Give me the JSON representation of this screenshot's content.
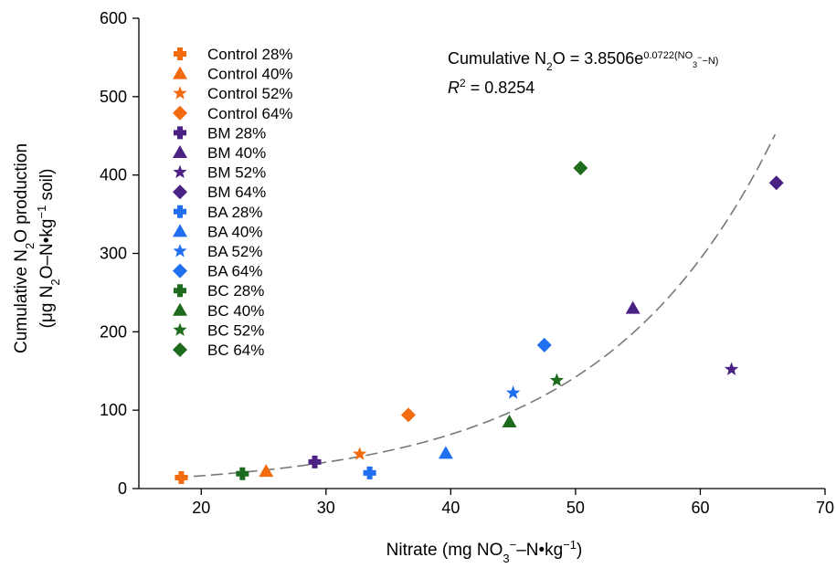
{
  "chart_data": {
    "type": "scatter",
    "xlabel": "Nitrate (mg NO3−–N•kg−1)",
    "ylabel_line1": "Cumulative N2O production",
    "ylabel_line2": "(μg N2O–N•kg−1 soil)",
    "xlim": [
      15,
      70
    ],
    "ylim": [
      0,
      600
    ],
    "xticks": [
      20,
      30,
      40,
      50,
      60,
      70
    ],
    "yticks": [
      0,
      100,
      200,
      300,
      400,
      500,
      600
    ],
    "grid": false,
    "legend_position": "top-left",
    "equation": "Cumulative N2O = 3.8506e^0.0722(NO3−–N)",
    "r2": "R2 = 0.8254",
    "fit": {
      "type": "exponential",
      "a": 3.8506,
      "b": 0.0722,
      "x_range": [
        18,
        66
      ]
    },
    "series": [
      {
        "name": "Control 28%",
        "color": "#F26B0F",
        "marker": "plus",
        "x": [
          18.4
        ],
        "y": [
          14
        ]
      },
      {
        "name": "Control 40%",
        "color": "#F26B0F",
        "marker": "triangle",
        "x": [
          25.2
        ],
        "y": [
          22
        ]
      },
      {
        "name": "Control 52%",
        "color": "#F26B0F",
        "marker": "star",
        "x": [
          32.7
        ],
        "y": [
          44
        ]
      },
      {
        "name": "Control 64%",
        "color": "#F26B0F",
        "marker": "diamond",
        "x": [
          36.6
        ],
        "y": [
          94
        ]
      },
      {
        "name": "BM 28%",
        "color": "#4B2283",
        "marker": "plus",
        "x": [
          29.1
        ],
        "y": [
          34
        ]
      },
      {
        "name": "BM 40%",
        "color": "#4B2283",
        "marker": "triangle",
        "x": [
          54.6
        ],
        "y": [
          230
        ]
      },
      {
        "name": "BM 52%",
        "color": "#4B2283",
        "marker": "star",
        "x": [
          62.5
        ],
        "y": [
          152
        ]
      },
      {
        "name": "BM 64%",
        "color": "#4B2283",
        "marker": "diamond",
        "x": [
          66.1
        ],
        "y": [
          390
        ]
      },
      {
        "name": "BA 28%",
        "color": "#1F6FF0",
        "marker": "plus",
        "x": [
          33.5
        ],
        "y": [
          20
        ]
      },
      {
        "name": "BA 40%",
        "color": "#1F6FF0",
        "marker": "triangle",
        "x": [
          39.6
        ],
        "y": [
          45
        ]
      },
      {
        "name": "BA 52%",
        "color": "#1F6FF0",
        "marker": "star",
        "x": [
          45.0
        ],
        "y": [
          122
        ]
      },
      {
        "name": "BA 64%",
        "color": "#1F6FF0",
        "marker": "diamond",
        "x": [
          47.5
        ],
        "y": [
          183
        ]
      },
      {
        "name": "BC 28%",
        "color": "#1D6B1D",
        "marker": "plus",
        "x": [
          23.3
        ],
        "y": [
          19
        ]
      },
      {
        "name": "BC 40%",
        "color": "#1D6B1D",
        "marker": "triangle",
        "x": [
          44.7
        ],
        "y": [
          85
        ]
      },
      {
        "name": "BC 52%",
        "color": "#1D6B1D",
        "marker": "star",
        "x": [
          48.5
        ],
        "y": [
          138
        ]
      },
      {
        "name": "BC 64%",
        "color": "#1D6B1D",
        "marker": "diamond",
        "x": [
          50.4
        ],
        "y": [
          409
        ]
      }
    ]
  }
}
